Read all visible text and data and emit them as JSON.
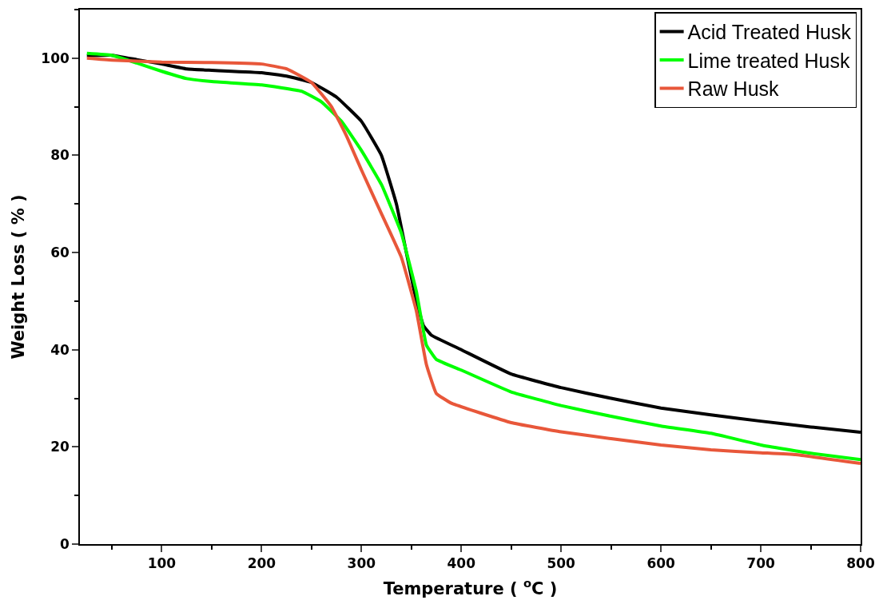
{
  "chart_data": {
    "type": "line",
    "xlabel": "Temperature ( $^{o}$C )",
    "ylabel": "Weight Loss ( % )",
    "xlim": [
      18,
      800
    ],
    "xticks": [
      100,
      200,
      300,
      400,
      500,
      600,
      700,
      800
    ],
    "ylim": [
      0,
      110
    ],
    "yticks": [
      0,
      20,
      40,
      60,
      80,
      100
    ],
    "legend": "top right",
    "marker": "none",
    "line_style": "solid",
    "series": [
      {
        "name": "Acid Treated Husk",
        "color": "#000000",
        "x": [
          25,
          50,
          75,
          100,
          125,
          150,
          200,
          225,
          250,
          275,
          300,
          320,
          335,
          345,
          355,
          362,
          370,
          400,
          450,
          500,
          550,
          600,
          650,
          700,
          750,
          800
        ],
        "values": [
          100.5,
          100.6,
          99.7,
          98.8,
          97.8,
          97.5,
          97.0,
          96.3,
          95,
          92,
          87,
          80,
          70,
          60,
          50,
          45,
          43,
          40,
          35,
          32.2,
          30,
          28,
          26.6,
          25.3,
          24.1,
          23
        ]
      },
      {
        "name": "Lime treated Husk",
        "color": "#00ff00",
        "x": [
          25,
          50,
          75,
          100,
          125,
          150,
          200,
          240,
          260,
          280,
          300,
          320,
          340,
          355,
          365,
          375,
          400,
          450,
          500,
          550,
          600,
          650,
          700,
          750,
          800
        ],
        "values": [
          101,
          100.6,
          99,
          97.3,
          95.8,
          95.2,
          94.5,
          93.2,
          91,
          87,
          81,
          74,
          64,
          52,
          41,
          38,
          35.8,
          31.3,
          28.5,
          26.3,
          24.3,
          22.8,
          20.4,
          18.7,
          17.4
        ]
      },
      {
        "name": "Raw Husk",
        "color": "#e8573a",
        "x": [
          25,
          50,
          100,
          150,
          200,
          225,
          250,
          270,
          285,
          300,
          320,
          340,
          355,
          365,
          375,
          390,
          450,
          500,
          550,
          600,
          650,
          700,
          735,
          800
        ],
        "values": [
          100,
          99.6,
          99.2,
          99.1,
          98.8,
          97.8,
          95,
          90,
          84,
          77,
          68,
          59,
          48,
          37,
          31,
          29,
          25,
          23.1,
          21.7,
          20.4,
          19.4,
          18.8,
          18.4,
          16.6
        ]
      }
    ]
  }
}
